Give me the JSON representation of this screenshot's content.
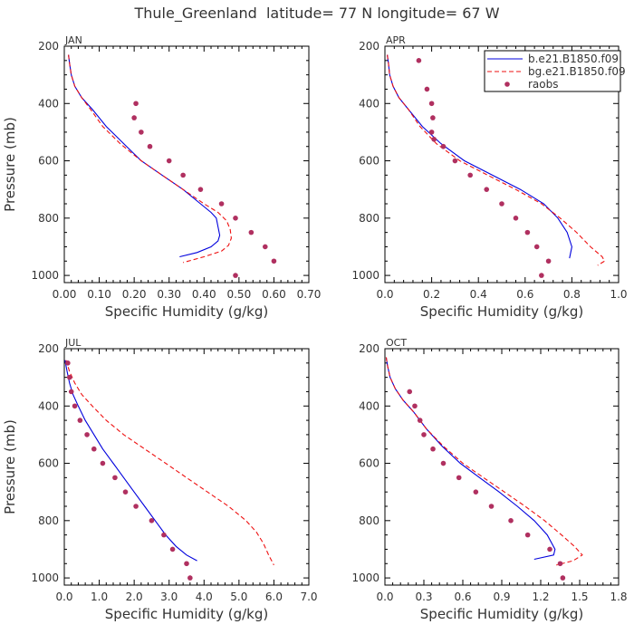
{
  "figure_title": "Thule_Greenland  latitude= 77 N longitude= 67 W",
  "colors": {
    "model_b": "#0000dd",
    "model_bg": "#ee1111",
    "raobs": "#b03060",
    "axis": "#000000"
  },
  "chart_data": [
    {
      "type": "line",
      "panel": "JAN",
      "xlabel": "Specific Humidity (g/kg)",
      "ylabel": "Pressure (mb)",
      "xlim": [
        0,
        0.7
      ],
      "ylim": [
        200,
        1025
      ],
      "y_inverted": true,
      "xticks": [
        "0.00",
        "0.10",
        "0.20",
        "0.30",
        "0.40",
        "0.50",
        "0.60",
        "0.70"
      ],
      "yticks": [
        "200",
        "400",
        "600",
        "800",
        "1000"
      ],
      "series": [
        {
          "name": "b.e21.B1850.f09",
          "style": "solid",
          "x": [
            0.012,
            0.015,
            0.02,
            0.03,
            0.05,
            0.08,
            0.12,
            0.17,
            0.22,
            0.28,
            0.34,
            0.39,
            0.42,
            0.435,
            0.44,
            0.445,
            0.44,
            0.42,
            0.38,
            0.33
          ],
          "y": [
            230,
            260,
            300,
            340,
            380,
            420,
            480,
            540,
            600,
            650,
            700,
            750,
            780,
            800,
            830,
            860,
            880,
            900,
            920,
            935
          ]
        },
        {
          "name": "bg.e21.B1850.f09",
          "style": "dashed",
          "x": [
            0.012,
            0.015,
            0.02,
            0.03,
            0.05,
            0.075,
            0.11,
            0.16,
            0.22,
            0.28,
            0.34,
            0.4,
            0.44,
            0.465,
            0.475,
            0.478,
            0.47,
            0.45,
            0.4,
            0.34
          ],
          "y": [
            230,
            260,
            300,
            340,
            380,
            420,
            480,
            540,
            600,
            650,
            700,
            750,
            780,
            810,
            840,
            870,
            895,
            915,
            935,
            955
          ]
        },
        {
          "name": "raobs",
          "style": "markers",
          "x": [
            0.205,
            0.2,
            0.22,
            0.245,
            0.3,
            0.34,
            0.39,
            0.45,
            0.49,
            0.535,
            0.575,
            0.6,
            0.49
          ],
          "y": [
            400,
            450,
            500,
            550,
            600,
            650,
            700,
            750,
            800,
            850,
            900,
            950,
            1000
          ]
        }
      ]
    },
    {
      "type": "line",
      "panel": "APR",
      "xlabel": "Specific Humidity (g/kg)",
      "ylabel": "",
      "xlim": [
        0,
        1.0
      ],
      "ylim": [
        200,
        1025
      ],
      "y_inverted": true,
      "xticks": [
        "0.0",
        "0.2",
        "0.4",
        "0.6",
        "0.8",
        "1.0"
      ],
      "yticks": [
        "200",
        "400",
        "600",
        "800",
        "1000"
      ],
      "legend": [
        "b.e21.B1850.f09",
        "bg.e21.B1850.f09",
        "raobs"
      ],
      "legend_position": "top-right",
      "series": [
        {
          "name": "b.e21.B1850.f09",
          "style": "solid",
          "x": [
            0.01,
            0.015,
            0.02,
            0.035,
            0.06,
            0.1,
            0.16,
            0.24,
            0.34,
            0.46,
            0.58,
            0.68,
            0.74,
            0.78,
            0.8,
            0.79
          ],
          "y": [
            230,
            260,
            300,
            340,
            380,
            420,
            480,
            540,
            600,
            650,
            700,
            750,
            800,
            850,
            900,
            940
          ]
        },
        {
          "name": "bg.e21.B1850.f09",
          "style": "dashed",
          "x": [
            0.01,
            0.015,
            0.02,
            0.035,
            0.06,
            0.1,
            0.15,
            0.22,
            0.32,
            0.44,
            0.56,
            0.67,
            0.75,
            0.82,
            0.88,
            0.93,
            0.94,
            0.91
          ],
          "y": [
            230,
            260,
            300,
            340,
            380,
            420,
            480,
            540,
            600,
            650,
            700,
            750,
            800,
            850,
            900,
            935,
            950,
            965
          ]
        },
        {
          "name": "raobs",
          "style": "markers",
          "x": [
            0.145,
            0.18,
            0.2,
            0.205,
            0.2,
            0.21,
            0.25,
            0.3,
            0.365,
            0.435,
            0.5,
            0.56,
            0.61,
            0.65,
            0.7,
            0.67
          ],
          "y": [
            250,
            350,
            400,
            450,
            500,
            525,
            550,
            600,
            650,
            700,
            750,
            800,
            850,
            900,
            950,
            1000
          ]
        }
      ]
    },
    {
      "type": "line",
      "panel": "JUL",
      "xlabel": "Specific Humidity (g/kg)",
      "ylabel": "Pressure (mb)",
      "xlim": [
        0,
        7.0
      ],
      "ylim": [
        200,
        1025
      ],
      "y_inverted": true,
      "xticks": [
        "0.0",
        "1.0",
        "2.0",
        "3.0",
        "4.0",
        "5.0",
        "6.0",
        "7.0"
      ],
      "yticks": [
        "200",
        "400",
        "600",
        "800",
        "1000"
      ],
      "series": [
        {
          "name": "b.e21.B1850.f09",
          "style": "solid",
          "x": [
            0.02,
            0.08,
            0.15,
            0.25,
            0.4,
            0.6,
            0.85,
            1.1,
            1.4,
            1.7,
            2.0,
            2.3,
            2.6,
            2.9,
            3.2,
            3.5,
            3.8
          ],
          "y": [
            240,
            280,
            320,
            360,
            400,
            450,
            500,
            550,
            600,
            650,
            700,
            750,
            800,
            850,
            890,
            920,
            940
          ]
        },
        {
          "name": "bg.e21.B1850.f09",
          "style": "dashed",
          "x": [
            0.05,
            0.15,
            0.3,
            0.5,
            0.8,
            1.2,
            1.7,
            2.3,
            2.9,
            3.5,
            4.1,
            4.7,
            5.2,
            5.5,
            5.7,
            5.85,
            6.0
          ],
          "y": [
            240,
            280,
            320,
            360,
            400,
            450,
            500,
            550,
            600,
            650,
            700,
            750,
            800,
            840,
            880,
            920,
            955
          ]
        },
        {
          "name": "raobs",
          "style": "markers",
          "x": [
            0.1,
            0.15,
            0.2,
            0.3,
            0.45,
            0.65,
            0.85,
            1.1,
            1.45,
            1.75,
            2.05,
            2.5,
            2.85,
            3.1,
            3.5,
            3.6
          ],
          "y": [
            250,
            300,
            350,
            400,
            450,
            500,
            550,
            600,
            650,
            700,
            750,
            800,
            850,
            900,
            950,
            1000
          ]
        }
      ]
    },
    {
      "type": "line",
      "panel": "OCT",
      "xlabel": "Specific Humidity (g/kg)",
      "ylabel": "",
      "xlim": [
        0,
        1.8
      ],
      "ylim": [
        200,
        1025
      ],
      "y_inverted": true,
      "xticks": [
        "0.0",
        "0.3",
        "0.6",
        "0.9",
        "1.2",
        "1.5",
        "1.8"
      ],
      "yticks": [
        "200",
        "400",
        "600",
        "800",
        "1000"
      ],
      "series": [
        {
          "name": "b.e21.B1850.f09",
          "style": "solid",
          "x": [
            0.01,
            0.02,
            0.04,
            0.08,
            0.14,
            0.22,
            0.32,
            0.44,
            0.58,
            0.73,
            0.88,
            1.02,
            1.15,
            1.25,
            1.31,
            1.3,
            1.15
          ],
          "y": [
            230,
            260,
            300,
            340,
            380,
            420,
            480,
            540,
            600,
            650,
            700,
            750,
            800,
            850,
            900,
            920,
            935
          ]
        },
        {
          "name": "bg.e21.B1850.f09",
          "style": "dashed",
          "x": [
            0.01,
            0.02,
            0.04,
            0.08,
            0.14,
            0.22,
            0.32,
            0.45,
            0.6,
            0.76,
            0.92,
            1.08,
            1.23,
            1.36,
            1.46,
            1.52,
            1.45,
            1.32
          ],
          "y": [
            230,
            260,
            300,
            340,
            380,
            420,
            480,
            540,
            600,
            650,
            700,
            750,
            800,
            850,
            890,
            920,
            940,
            955
          ]
        },
        {
          "name": "raobs",
          "style": "markers",
          "x": [
            0.19,
            0.23,
            0.27,
            0.3,
            0.37,
            0.45,
            0.57,
            0.7,
            0.82,
            0.97,
            1.1,
            1.27,
            1.35,
            1.37
          ],
          "y": [
            350,
            400,
            450,
            500,
            550,
            600,
            650,
            700,
            750,
            800,
            850,
            900,
            950,
            1000
          ]
        }
      ]
    }
  ]
}
